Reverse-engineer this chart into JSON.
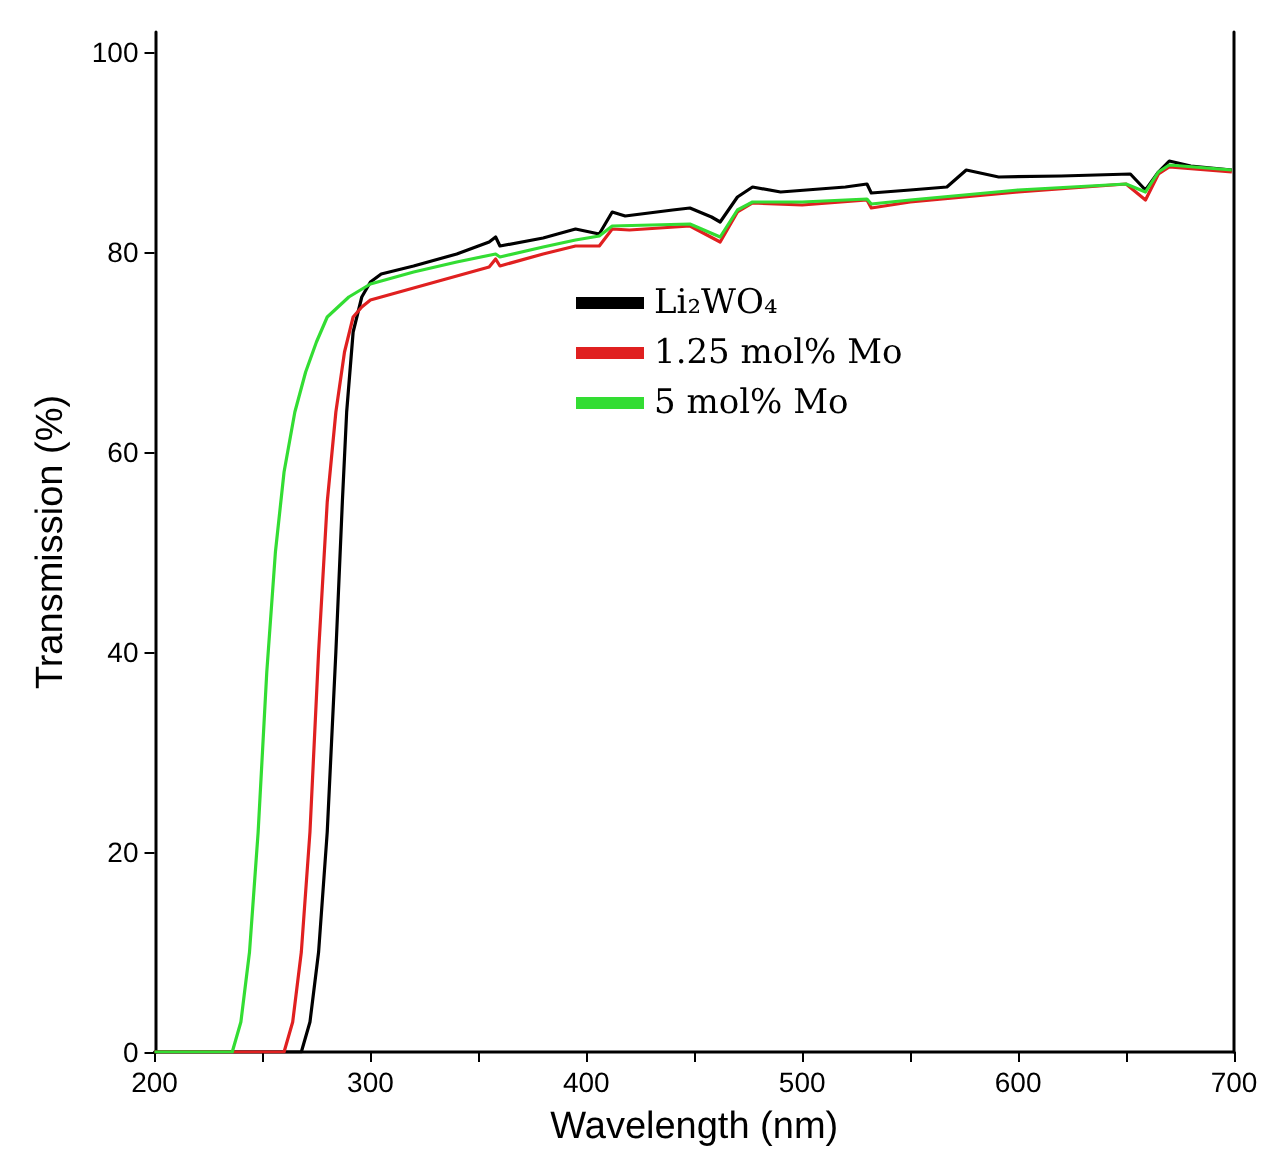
{
  "chart_data": {
    "type": "line",
    "xlabel": "Wavelength (nm)",
    "ylabel": "Transmission (%)",
    "xlim": [
      200,
      700
    ],
    "ylim": [
      0,
      102
    ],
    "xticks": [
      200,
      {
        "value": 250,
        "label": null
      },
      300,
      {
        "value": 350,
        "label": null
      },
      400,
      {
        "value": 450,
        "label": null
      },
      500,
      {
        "value": 550,
        "label": null
      },
      600,
      {
        "value": 650,
        "label": null
      },
      700
    ],
    "yticks": [
      0,
      20,
      40,
      60,
      80,
      100
    ],
    "grid": false,
    "legend": "top",
    "marker": "none",
    "line_style": "solid",
    "series": [
      {
        "name": "Li₂WO₄",
        "color": "#000000",
        "x": [
          200,
          268,
          272,
          276,
          280,
          284,
          287,
          289,
          292,
          296,
          300,
          305,
          320,
          340,
          355,
          358,
          360,
          380,
          395,
          406,
          412,
          418,
          440,
          448,
          458,
          462,
          470,
          477,
          490,
          520,
          530,
          532,
          550,
          567,
          576,
          591,
          620,
          652,
          659,
          665,
          670,
          680,
          699
        ],
        "values": [
          0,
          0,
          3,
          10,
          22,
          40,
          55,
          64,
          72,
          75.5,
          77,
          77.8,
          78.6,
          79.8,
          81,
          81.5,
          80.6,
          81.4,
          82.3,
          81.8,
          84,
          83.6,
          84.2,
          84.4,
          83.5,
          83,
          85.5,
          86.5,
          86,
          86.5,
          86.8,
          85.9,
          86.2,
          86.5,
          88.2,
          87.5,
          87.6,
          87.8,
          86.2,
          88,
          89.1,
          88.6,
          88.2
        ]
      },
      {
        "name": "1.25 mol% Mo",
        "color": "#e02020",
        "x": [
          200,
          260,
          264,
          268,
          272,
          276,
          280,
          284,
          288,
          292,
          296,
          300,
          310,
          330,
          355,
          358,
          360,
          380,
          395,
          406,
          412,
          420,
          448,
          462,
          470,
          477,
          500,
          530,
          532,
          550,
          600,
          650,
          659,
          665,
          670,
          699
        ],
        "values": [
          0,
          0,
          3,
          10,
          22,
          40,
          55,
          64,
          70,
          73.5,
          74.5,
          75.2,
          75.8,
          77,
          78.5,
          79.3,
          78.6,
          79.8,
          80.6,
          80.6,
          82.3,
          82.2,
          82.6,
          81,
          84,
          84.9,
          84.7,
          85.2,
          84.4,
          85,
          86,
          86.8,
          85.2,
          87.8,
          88.5,
          88
        ]
      },
      {
        "name": "5 mol% Mo",
        "color": "#33dd33",
        "x": [
          200,
          236,
          240,
          244,
          248,
          252,
          256,
          260,
          265,
          270,
          275,
          280,
          290,
          300,
          320,
          340,
          358,
          360,
          380,
          395,
          406,
          412,
          448,
          462,
          470,
          477,
          500,
          530,
          532,
          550,
          600,
          650,
          659,
          665,
          670,
          699
        ],
        "values": [
          0,
          0,
          3,
          10,
          22,
          38,
          50,
          58,
          64,
          68,
          71,
          73.5,
          75.5,
          76.8,
          78,
          79,
          79.8,
          79.5,
          80.5,
          81.2,
          81.6,
          82.6,
          82.8,
          81.5,
          84.2,
          85,
          85,
          85.3,
          84.8,
          85.2,
          86.2,
          86.8,
          86,
          88,
          88.7,
          88.2
        ]
      }
    ]
  }
}
